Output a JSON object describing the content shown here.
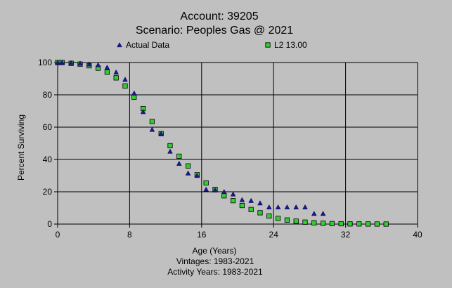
{
  "colors": {
    "background": "#c0c0c0",
    "actual_fill": "#1a1a8c",
    "model_fill": "#33cc33",
    "model_stroke": "#000000",
    "grid": "#000000"
  },
  "chart_data": {
    "type": "scatter",
    "title": "Account: 39205",
    "subtitle": "Scenario: Peoples Gas @ 2021",
    "xlabel": "Age (Years)",
    "ylabel": "Percent Surviving",
    "xlim": [
      0,
      40
    ],
    "ylim": [
      0,
      100
    ],
    "xticks": [
      0,
      8,
      16,
      24,
      32,
      40
    ],
    "yticks": [
      0,
      20,
      40,
      60,
      80,
      100
    ],
    "grid": true,
    "legend_position": "top",
    "notes": [
      "Vintages: 1983-2021",
      "Activity Years: 1983-2021"
    ],
    "series": [
      {
        "name": "Actual Data",
        "marker": "triangle",
        "icon": "triangle-marker-icon",
        "x": [
          0,
          0.5,
          1.5,
          2.5,
          3.5,
          4.5,
          5.5,
          6.5,
          7.5,
          8.5,
          9.5,
          10.5,
          11.5,
          12.5,
          13.5,
          14.5,
          15.5,
          16.5,
          17.5,
          18.5,
          19.5,
          20.5,
          21.5,
          22.5,
          23.5,
          24.5,
          25.5,
          26.5,
          27.5,
          28.5,
          29.5
        ],
        "y": [
          100,
          100,
          99.8,
          99.5,
          99,
          98.5,
          97,
          94,
          89.5,
          81,
          69.5,
          58.5,
          56,
          45,
          37.5,
          31.5,
          30,
          21.5,
          21,
          20,
          18.5,
          15,
          14.5,
          13,
          10.5,
          10.5,
          10.5,
          10.5,
          10.5,
          6.5,
          6.5
        ]
      },
      {
        "name": "L2 13.00",
        "marker": "square",
        "icon": "square-marker-icon",
        "x": [
          0,
          0.5,
          1.5,
          2.5,
          3.5,
          4.5,
          5.5,
          6.5,
          7.5,
          8.5,
          9.5,
          10.5,
          11.5,
          12.5,
          13.5,
          14.5,
          15.5,
          16.5,
          17.5,
          18.5,
          19.5,
          20.5,
          21.5,
          22.5,
          23.5,
          24.5,
          25.5,
          26.5,
          27.5,
          28.5,
          29.5,
          30.5,
          31.5,
          32.5,
          33.5,
          34.5,
          35.5,
          36.5
        ],
        "y": [
          100,
          100,
          99.5,
          99,
          98,
          96.5,
          94,
          90.5,
          85.5,
          78.5,
          71.5,
          63.5,
          56,
          48.5,
          42,
          36,
          30.5,
          25.5,
          21.5,
          17.5,
          14.5,
          11.5,
          9,
          7,
          5,
          3.5,
          2.5,
          1.8,
          1.2,
          0.8,
          0.5,
          0.3,
          0.2,
          0.1,
          0.1,
          0.05,
          0.03,
          0.01
        ]
      }
    ]
  }
}
